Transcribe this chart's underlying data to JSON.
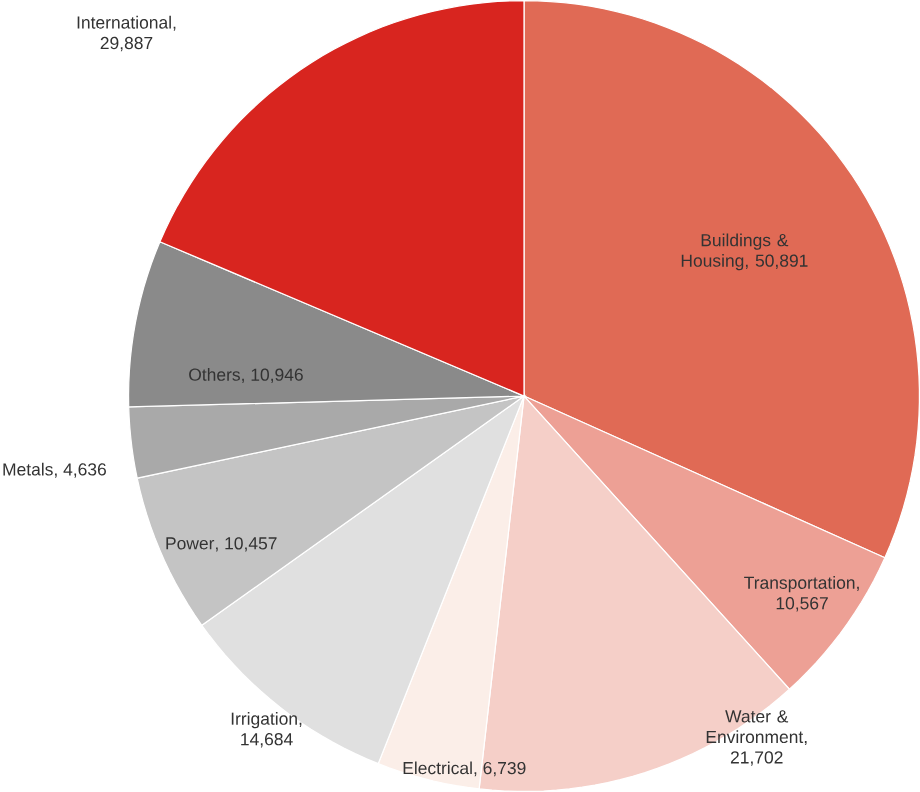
{
  "chart_data": {
    "type": "pie",
    "categories": [
      "Buildings & Housing",
      "Transportation",
      "Water & Environment",
      "Electrical",
      "Irrigation",
      "Power",
      "Metals",
      "Others",
      "International"
    ],
    "values": [
      50891,
      10567,
      21702,
      6739,
      14684,
      10457,
      4636,
      10946,
      29887
    ],
    "value_labels": [
      ", 50,891",
      ", 10,567",
      ", 21,702",
      ", 6,739",
      ", 14,684",
      ", 10,457",
      ", 4,636",
      ", 10,946",
      ", 29,887"
    ],
    "colors": [
      "#e06a55",
      "#eda095",
      "#f5cfc8",
      "#fbeee8",
      "#e0e0e0",
      "#c4c4c4",
      "#a9a9a9",
      "#8a8a8a",
      "#d8251f"
    ]
  }
}
